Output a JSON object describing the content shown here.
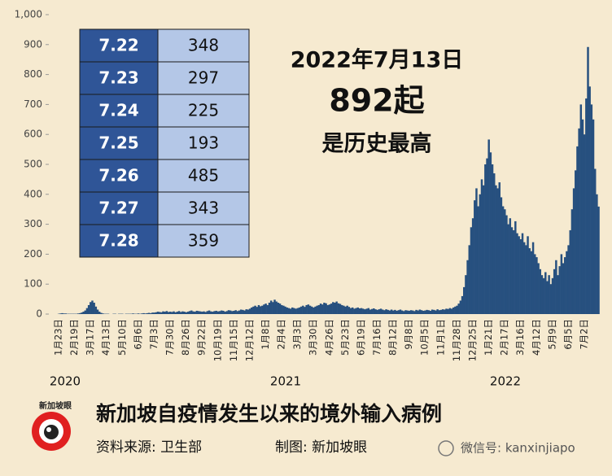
{
  "chart_data": {
    "type": "bar",
    "color": "#27507f",
    "ylim": [
      0,
      1000
    ],
    "yticks": [
      0,
      100,
      200,
      300,
      400,
      500,
      600,
      700,
      800,
      900,
      {
        "value": 1000,
        "label": "1,000"
      }
    ],
    "categories": [
      "1月23日",
      null,
      null,
      null,
      null,
      null,
      null,
      null,
      null,
      "2月19日",
      null,
      null,
      null,
      null,
      null,
      null,
      null,
      null,
      "3月17日",
      null,
      null,
      null,
      null,
      null,
      null,
      null,
      null,
      "4月13日",
      null,
      null,
      null,
      null,
      null,
      null,
      null,
      null,
      "5月10日",
      null,
      null,
      null,
      null,
      null,
      null,
      null,
      null,
      "6月6日",
      null,
      null,
      null,
      null,
      null,
      null,
      null,
      null,
      "7月3日",
      null,
      null,
      null,
      null,
      null,
      null,
      null,
      null,
      "7月30日",
      null,
      null,
      null,
      null,
      null,
      null,
      null,
      null,
      "8月26日",
      null,
      null,
      null,
      null,
      null,
      null,
      null,
      null,
      "9月22日",
      null,
      null,
      null,
      null,
      null,
      null,
      null,
      null,
      "10月19日",
      null,
      null,
      null,
      null,
      null,
      null,
      null,
      null,
      "11月15日",
      null,
      null,
      null,
      null,
      null,
      null,
      null,
      null,
      "12月12日",
      null,
      null,
      null,
      null,
      null,
      null,
      null,
      null,
      "1月8日",
      null,
      null,
      null,
      null,
      null,
      null,
      null,
      null,
      "2月4日",
      null,
      null,
      null,
      null,
      null,
      null,
      null,
      null,
      "3月3日",
      null,
      null,
      null,
      null,
      null,
      null,
      null,
      null,
      "3月30日",
      null,
      null,
      null,
      null,
      null,
      null,
      null,
      null,
      "4月26日",
      null,
      null,
      null,
      null,
      null,
      null,
      null,
      null,
      "5月23日",
      null,
      null,
      null,
      null,
      null,
      null,
      null,
      null,
      "6月19日",
      null,
      null,
      null,
      null,
      null,
      null,
      null,
      null,
      "7月16日",
      null,
      null,
      null,
      null,
      null,
      null,
      null,
      null,
      "8月12日",
      null,
      null,
      null,
      null,
      null,
      null,
      null,
      null,
      "9月8日",
      null,
      null,
      null,
      null,
      null,
      null,
      null,
      null,
      "10月5日",
      null,
      null,
      null,
      null,
      null,
      null,
      null,
      null,
      "11月1日",
      null,
      null,
      null,
      null,
      null,
      null,
      null,
      null,
      "11月28日",
      null,
      null,
      null,
      null,
      null,
      null,
      null,
      null,
      "12月25日",
      null,
      null,
      null,
      null,
      null,
      null,
      null,
      null,
      "1月21日",
      null,
      null,
      null,
      null,
      null,
      null,
      null,
      null,
      "2月17日",
      null,
      null,
      null,
      null,
      null,
      null,
      null,
      null,
      "3月16日",
      null,
      null,
      null,
      null,
      null,
      null,
      null,
      null,
      "4月12日",
      null,
      null,
      null,
      null,
      null,
      null,
      null,
      null,
      "5月9日",
      null,
      null,
      null,
      null,
      null,
      null,
      null,
      null,
      "6月5日",
      null,
      null,
      null,
      null,
      null,
      null,
      null,
      null,
      "7月2日",
      null,
      null,
      null,
      null,
      null,
      null,
      null,
      null
    ],
    "values": [
      1,
      2,
      3,
      2,
      2,
      1,
      1,
      1,
      1,
      1,
      1,
      2,
      3,
      5,
      8,
      12,
      20,
      30,
      40,
      45,
      38,
      25,
      15,
      8,
      4,
      2,
      1,
      1,
      1,
      0,
      0,
      1,
      1,
      0,
      1,
      1,
      1,
      0,
      1,
      1,
      1,
      1,
      2,
      1,
      1,
      2,
      1,
      2,
      3,
      2,
      3,
      4,
      3,
      5,
      5,
      6,
      8,
      7,
      6,
      9,
      8,
      10,
      7,
      8,
      7,
      9,
      6,
      8,
      10,
      7,
      9,
      8,
      6,
      8,
      10,
      12,
      9,
      8,
      11,
      10,
      9,
      8,
      9,
      7,
      10,
      12,
      9,
      8,
      10,
      11,
      9,
      10,
      12,
      11,
      8,
      10,
      13,
      12,
      10,
      11,
      13,
      10,
      12,
      15,
      14,
      12,
      16,
      15,
      18,
      22,
      25,
      28,
      24,
      30,
      26,
      28,
      32,
      35,
      30,
      38,
      45,
      40,
      48,
      42,
      38,
      35,
      30,
      28,
      25,
      22,
      20,
      18,
      22,
      20,
      18,
      20,
      22,
      25,
      28,
      24,
      30,
      32,
      28,
      25,
      22,
      25,
      28,
      30,
      35,
      32,
      38,
      36,
      30,
      32,
      35,
      40,
      38,
      42,
      36,
      34,
      30,
      28,
      25,
      28,
      24,
      20,
      22,
      18,
      20,
      22,
      19,
      20,
      18,
      16,
      18,
      20,
      15,
      17,
      19,
      16,
      14,
      16,
      18,
      15,
      13,
      16,
      14,
      12,
      15,
      12,
      14,
      11,
      13,
      15,
      12,
      10,
      13,
      12,
      11,
      13,
      12,
      10,
      14,
      12,
      15,
      13,
      11,
      12,
      14,
      13,
      11,
      15,
      14,
      12,
      16,
      13,
      14,
      16,
      15,
      18,
      17,
      20,
      18,
      22,
      25,
      28,
      35,
      45,
      60,
      90,
      130,
      180,
      230,
      290,
      320,
      380,
      420,
      360,
      400,
      450,
      430,
      500,
      520,
      583,
      540,
      500,
      470,
      430,
      420,
      440,
      390,
      360,
      350,
      330,
      300,
      320,
      290,
      280,
      310,
      270,
      260,
      250,
      270,
      240,
      230,
      260,
      220,
      210,
      240,
      200,
      190,
      170,
      150,
      130,
      120,
      140,
      110,
      130,
      100,
      120,
      150,
      180,
      130,
      160,
      200,
      170,
      190,
      210,
      230,
      280,
      350,
      420,
      480,
      560,
      620,
      700,
      650,
      600,
      720,
      892,
      760,
      700,
      650,
      485,
      400,
      359
    ],
    "year_labels": [
      "2020",
      "2021",
      "2022"
    ],
    "annotation": [
      "2022年7月13日",
      "892起",
      "是历史最高"
    ]
  },
  "table": {
    "rows": [
      [
        "7.22",
        348
      ],
      [
        "7.23",
        297
      ],
      [
        "7.24",
        225
      ],
      [
        "7.25",
        193
      ],
      [
        "7.26",
        485
      ],
      [
        "7.27",
        343
      ],
      [
        "7.28",
        359
      ]
    ]
  },
  "footer": {
    "logo": "新加坡眼",
    "title": "新加坡自疫情发生以来的境外输入病例",
    "source": "资料来源:  卫生部",
    "credit": "制图:  新加坡眼",
    "watermark": "微信号: kanxinjiapo"
  }
}
